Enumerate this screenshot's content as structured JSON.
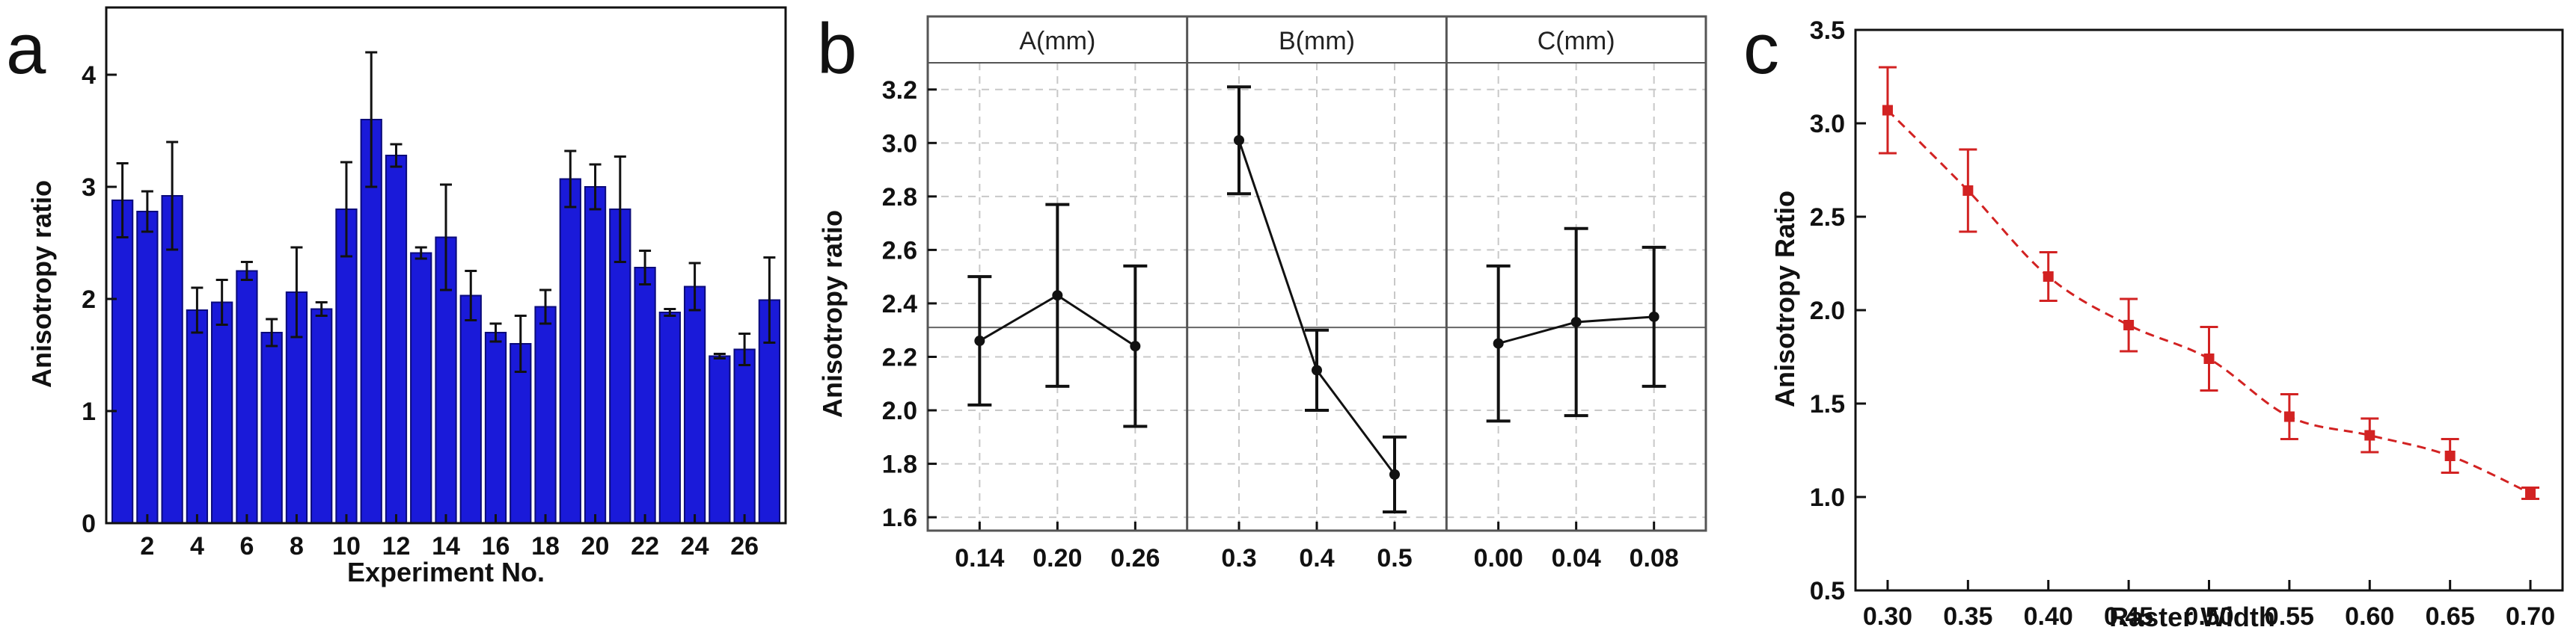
{
  "panels": {
    "a": {
      "letter": "a"
    },
    "b": {
      "letter": "b"
    },
    "c": {
      "letter": "c"
    }
  },
  "chart_data": [
    {
      "panel": "a",
      "type": "bar",
      "xlabel": "Experiment No.",
      "ylabel": "Anisotropy ratio",
      "ylim": [
        0,
        4.6
      ],
      "yticks": [
        0,
        1,
        2,
        3,
        4
      ],
      "xticks": [
        2,
        4,
        6,
        8,
        10,
        12,
        14,
        16,
        18,
        20,
        22,
        24,
        26
      ],
      "bar_color": "#1a1ad9",
      "grid": false,
      "categories": [
        1,
        2,
        3,
        4,
        5,
        6,
        7,
        8,
        9,
        10,
        11,
        12,
        13,
        14,
        15,
        16,
        17,
        18,
        19,
        20,
        21,
        22,
        23,
        24,
        25,
        26,
        27
      ],
      "values": [
        2.88,
        2.78,
        2.92,
        1.9,
        1.97,
        2.25,
        1.7,
        2.06,
        1.91,
        2.8,
        3.6,
        3.28,
        2.41,
        2.55,
        2.03,
        1.7,
        1.6,
        1.93,
        3.07,
        3.0,
        2.8,
        2.28,
        1.88,
        2.11,
        1.49,
        1.55,
        1.99
      ],
      "errors": [
        0.33,
        0.18,
        0.48,
        0.2,
        0.2,
        0.08,
        0.12,
        0.4,
        0.06,
        0.42,
        0.6,
        0.1,
        0.05,
        0.47,
        0.22,
        0.08,
        0.25,
        0.15,
        0.25,
        0.2,
        0.47,
        0.15,
        0.03,
        0.21,
        0.02,
        0.14,
        0.38
      ]
    },
    {
      "panel": "b",
      "type": "line",
      "ylabel": "Anisotropy ratio",
      "ylim": [
        1.55,
        3.3
      ],
      "yticks": [
        1.6,
        1.8,
        2.0,
        2.2,
        2.4,
        2.6,
        2.8,
        3.0,
        3.2
      ],
      "grid": true,
      "reference_line": 2.31,
      "facets": [
        {
          "title": "A(mm)",
          "x": [
            "0.14",
            "0.20",
            "0.26"
          ],
          "y": [
            2.26,
            2.43,
            2.24
          ],
          "err": [
            0.24,
            0.34,
            0.3
          ]
        },
        {
          "title": "B(mm)",
          "x": [
            "0.3",
            "0.4",
            "0.5"
          ],
          "y": [
            3.01,
            2.15,
            1.76
          ],
          "err": [
            0.2,
            0.15,
            0.14
          ]
        },
        {
          "title": "C(mm)",
          "x": [
            "0.00",
            "0.04",
            "0.08"
          ],
          "y": [
            2.25,
            2.33,
            2.35
          ],
          "err": [
            0.29,
            0.35,
            0.26
          ]
        }
      ]
    },
    {
      "panel": "c",
      "type": "scatter",
      "xlabel": "Raster Width",
      "ylabel": "Anisotropy Ratio",
      "xlim": [
        0.28,
        0.72
      ],
      "ylim": [
        0.5,
        3.5
      ],
      "xticks": [
        0.3,
        0.35,
        0.4,
        0.45,
        0.5,
        0.55,
        0.6,
        0.65,
        0.7
      ],
      "yticks": [
        0.5,
        1.0,
        1.5,
        2.0,
        2.5,
        3.0,
        3.5
      ],
      "color": "#d22222",
      "fit_line": "dashed",
      "grid": false,
      "x": [
        0.3,
        0.35,
        0.4,
        0.45,
        0.5,
        0.55,
        0.6,
        0.65,
        0.7
      ],
      "y": [
        3.07,
        2.64,
        2.18,
        1.92,
        1.74,
        1.43,
        1.33,
        1.22,
        1.02
      ],
      "err": [
        0.23,
        0.22,
        0.13,
        0.14,
        0.17,
        0.12,
        0.09,
        0.09,
        0.03
      ]
    }
  ]
}
